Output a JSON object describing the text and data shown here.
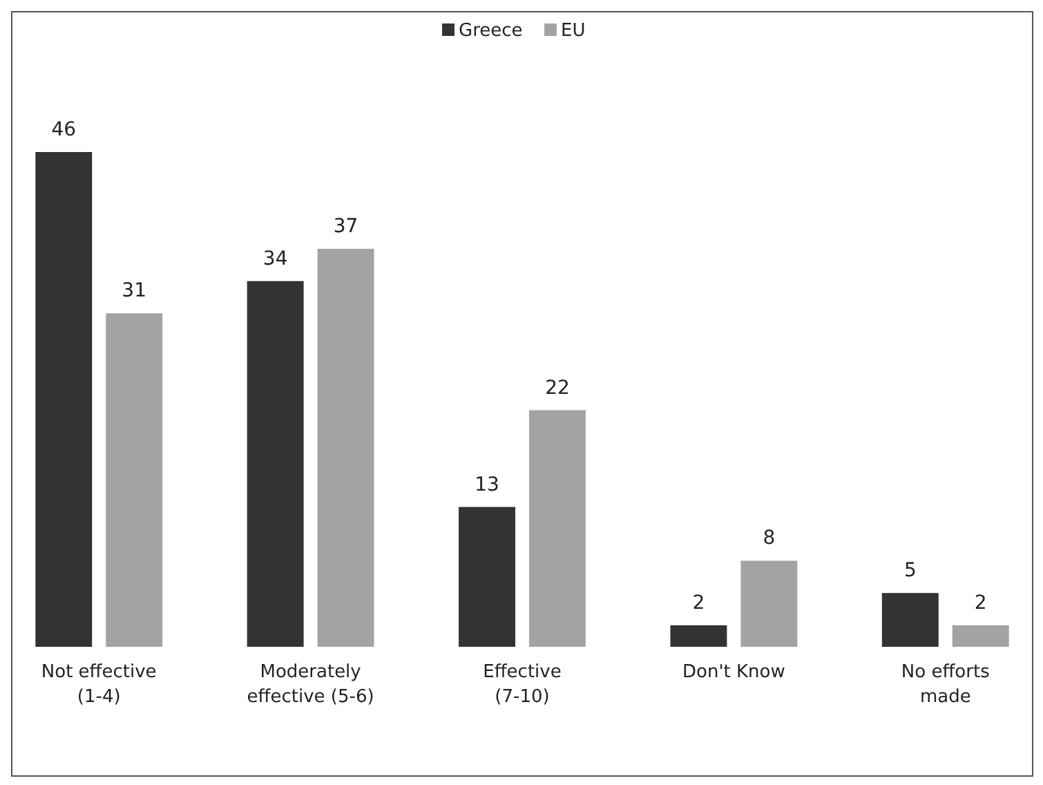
{
  "chart_data": {
    "type": "bar",
    "categories": [
      "Not effective\n(1-4)",
      "Moderately\neffective (5-6)",
      "Effective\n(7-10)",
      "Don't Know",
      "No efforts\nmade"
    ],
    "series": [
      {
        "name": "Greece",
        "color": "#333333",
        "values": [
          46,
          34,
          13,
          2,
          5
        ]
      },
      {
        "name": "EU",
        "color": "#a3a3a3",
        "values": [
          31,
          37,
          22,
          8,
          2
        ]
      }
    ],
    "data_labels": true,
    "legend": "top",
    "grid": false
  }
}
